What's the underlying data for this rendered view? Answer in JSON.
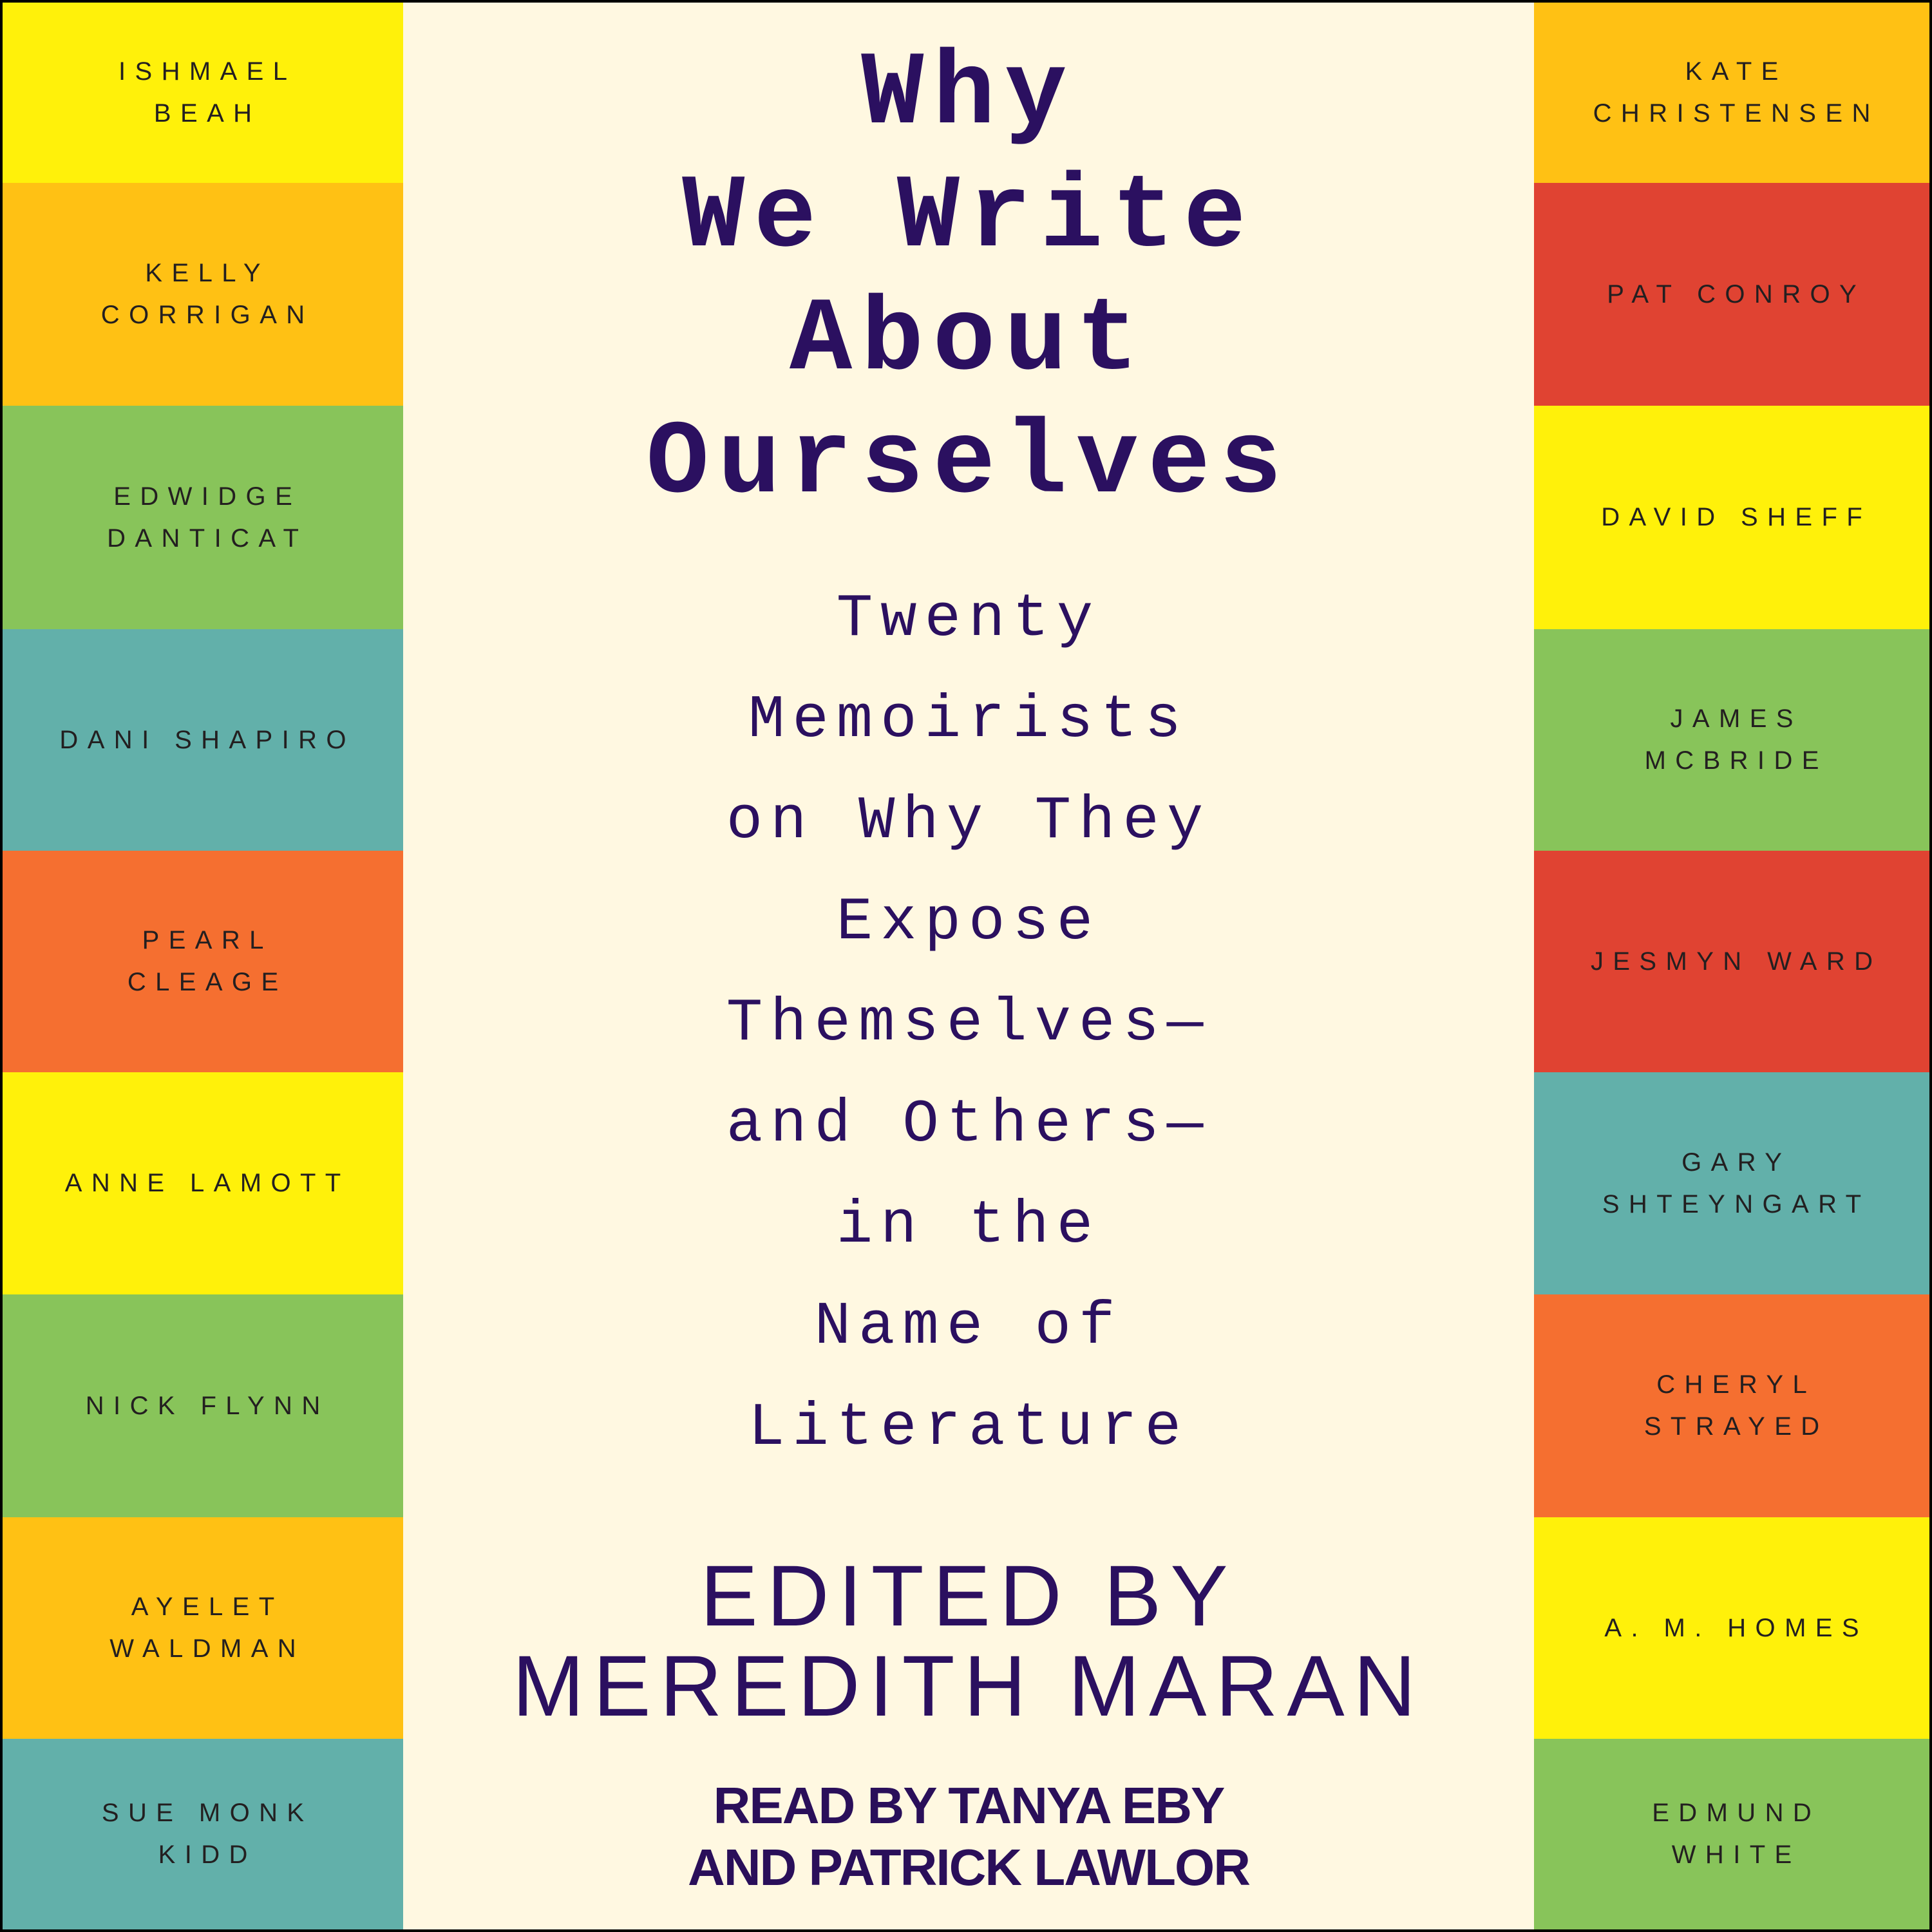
{
  "title_lines": [
    "Why",
    "We Write",
    "About",
    "Ourselves"
  ],
  "subtitle_lines": [
    "Twenty",
    "Memoirists",
    "on Why They",
    "Expose",
    "Themselves—",
    "and Others—",
    "in the",
    "Name of",
    "Literature"
  ],
  "editor_lines": [
    "EDITED BY",
    "MEREDITH MARAN"
  ],
  "reader_lines": [
    "READ BY TANYA EBY",
    "AND PATRICK LAWLOR"
  ],
  "colors": {
    "background": "#FFF8E1",
    "title_text": "#2B1060",
    "yellow": "#FFF10A",
    "gold": "#FFC114",
    "green": "#88C45A",
    "teal": "#62B0AA",
    "orange": "#F56F30",
    "red": "#E04332"
  },
  "left_authors": [
    {
      "lines": [
        "ISHMAEL",
        "BEAH"
      ],
      "color": "#FFF10A"
    },
    {
      "lines": [
        "KELLY",
        "CORRIGAN"
      ],
      "color": "#FFC114"
    },
    {
      "lines": [
        "EDWIDGE",
        "DANTICAT"
      ],
      "color": "#88C45A"
    },
    {
      "lines": [
        "DANI SHAPIRO"
      ],
      "color": "#62B0AA"
    },
    {
      "lines": [
        "PEARL",
        "CLEAGE"
      ],
      "color": "#F56F30"
    },
    {
      "lines": [
        "ANNE LAMOTT"
      ],
      "color": "#FFF10A"
    },
    {
      "lines": [
        "NICK FLYNN"
      ],
      "color": "#88C45A"
    },
    {
      "lines": [
        "AYELET",
        "WALDMAN"
      ],
      "color": "#FFC114"
    },
    {
      "lines": [
        "SUE MONK",
        "KIDD"
      ],
      "color": "#62B0AA"
    }
  ],
  "right_authors": [
    {
      "lines": [
        "KATE",
        "CHRISTENSEN"
      ],
      "color": "#FFC114"
    },
    {
      "lines": [
        "PAT CONROY"
      ],
      "color": "#E04332"
    },
    {
      "lines": [
        "DAVID SHEFF"
      ],
      "color": "#FFF10A"
    },
    {
      "lines": [
        "JAMES",
        "MCBRIDE"
      ],
      "color": "#88C45A"
    },
    {
      "lines": [
        "JESMYN WARD"
      ],
      "color": "#E04332"
    },
    {
      "lines": [
        "GARY",
        "SHTEYNGART"
      ],
      "color": "#62B0AA"
    },
    {
      "lines": [
        "CHERYL",
        "STRAYED"
      ],
      "color": "#F56F30"
    },
    {
      "lines": [
        "A. M. HOMES"
      ],
      "color": "#FFF10A"
    },
    {
      "lines": [
        "EDMUND",
        "WHITE"
      ],
      "color": "#88C45A"
    }
  ]
}
